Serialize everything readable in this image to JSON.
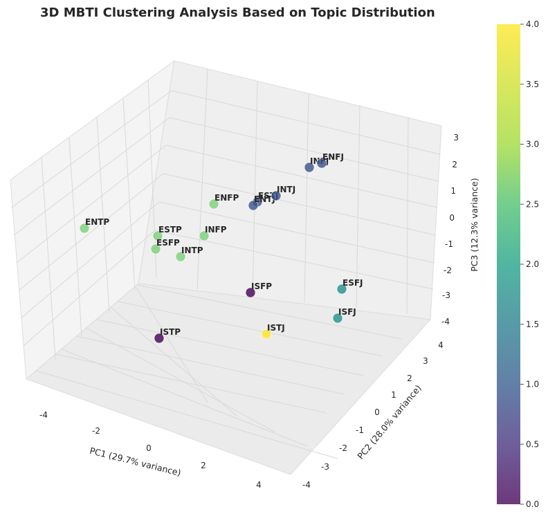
{
  "chart_data": {
    "type": "scatter",
    "title": "3D MBTI Clustering Analysis Based on Topic Distribution",
    "xlabel": "PC1 (29.7% variance)",
    "ylabel": "PC2 (28.0% variance)",
    "zlabel": "PC3 (12.3% variance)",
    "x_ticks": [
      "-4",
      "-2",
      "0",
      "2",
      "4"
    ],
    "y_ticks": [
      "-4",
      "-3",
      "-2",
      "-1",
      "0",
      "1",
      "2",
      "3",
      "4"
    ],
    "z_ticks": [
      "3",
      "2",
      "1",
      "0",
      "-1",
      "-2",
      "-3",
      "-4"
    ],
    "grid": true,
    "colorbar": {
      "colormap": "viridis",
      "range": [
        0.0,
        4.0
      ],
      "ticks": [
        "4.0",
        "3.5",
        "3.0",
        "2.5",
        "2.0",
        "1.5",
        "1.0",
        "0.5",
        "0.0"
      ]
    },
    "points": [
      {
        "label": "ENTP",
        "cluster": 3
      },
      {
        "label": "ESTP",
        "cluster": 3
      },
      {
        "label": "ESFP",
        "cluster": 3
      },
      {
        "label": "INTP",
        "cluster": 3
      },
      {
        "label": "INFP",
        "cluster": 3
      },
      {
        "label": "ENFP",
        "cluster": 3
      },
      {
        "label": "ESTJ",
        "cluster": 1
      },
      {
        "label": "ENTJ",
        "cluster": 1
      },
      {
        "label": "INTJ",
        "cluster": 1
      },
      {
        "label": "INFJ",
        "cluster": 1
      },
      {
        "label": "ENFJ",
        "cluster": 1
      },
      {
        "label": "ISFP",
        "cluster": 0
      },
      {
        "label": "ISTP",
        "cluster": 0
      },
      {
        "label": "ESFJ",
        "cluster": 2
      },
      {
        "label": "ISFJ",
        "cluster": 2
      },
      {
        "label": "ISTJ",
        "cluster": 4
      }
    ]
  }
}
